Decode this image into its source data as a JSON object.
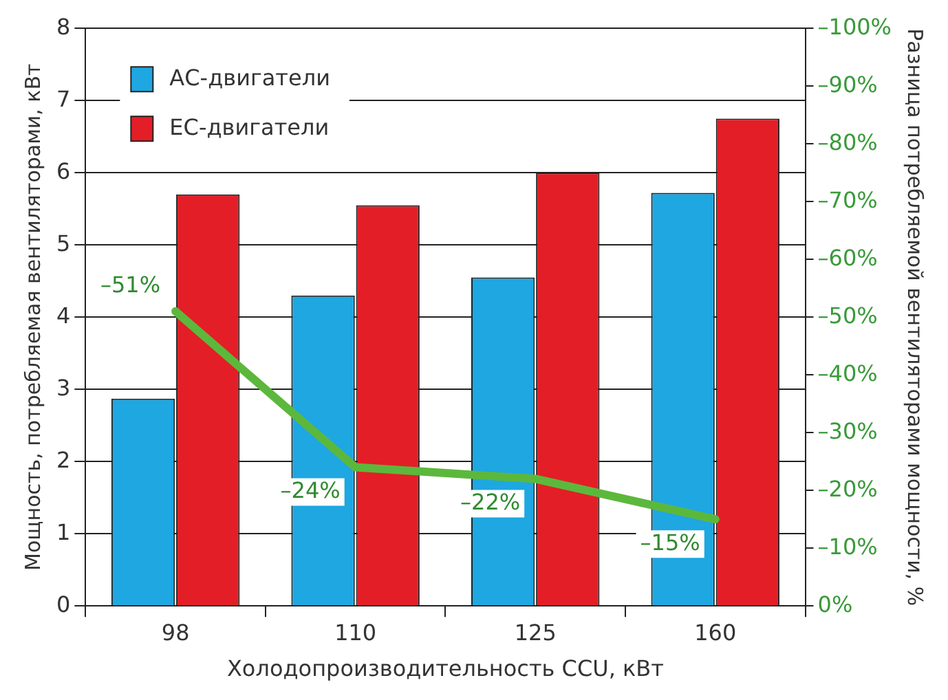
{
  "chart_data": {
    "type": "bar",
    "xlabel": "Холодопроизводительность CCU, кВт",
    "ylabel": "Мощность, потребляемая вентиляторами, кВт",
    "y2label": "Разница потребляемой вентиляторами мощности, %",
    "categories": [
      "98",
      "110",
      "125",
      "160"
    ],
    "series": [
      {
        "name": "АС-двигатели",
        "color": "#1ea7e1",
        "values": [
          2.87,
          4.3,
          4.55,
          5.72
        ]
      },
      {
        "name": "ЕС-двигатели",
        "color": "#e31e26",
        "values": [
          5.7,
          5.55,
          6.0,
          6.75
        ]
      },
      {
        "type": "line",
        "axis": "y2",
        "color": "#5cb83c",
        "values": [
          -51,
          -24,
          -22,
          -15
        ],
        "value_labels": [
          "–51%",
          "–24%",
          "–22%",
          "–15%"
        ]
      }
    ],
    "ylim": [
      0,
      8
    ],
    "yticks": [
      0,
      1,
      2,
      3,
      4,
      5,
      6,
      7,
      8
    ],
    "y2lim": [
      0,
      -100
    ],
    "y2ticks": [
      {
        "value": 0,
        "label": "0%"
      },
      {
        "value": -10,
        "label": "–10%"
      },
      {
        "value": -20,
        "label": "–20%"
      },
      {
        "value": -30,
        "label": "–30%"
      },
      {
        "value": -40,
        "label": "–40%"
      },
      {
        "value": -50,
        "label": "–50%"
      },
      {
        "value": -60,
        "label": "–60%"
      },
      {
        "value": -70,
        "label": "–70%"
      },
      {
        "value": -80,
        "label": "–80%"
      },
      {
        "value": -90,
        "label": "–90%"
      },
      {
        "value": -100,
        "label": "–100%"
      }
    ],
    "grid": "y",
    "legend": "top left",
    "marker": "none",
    "line_style": "solid"
  }
}
